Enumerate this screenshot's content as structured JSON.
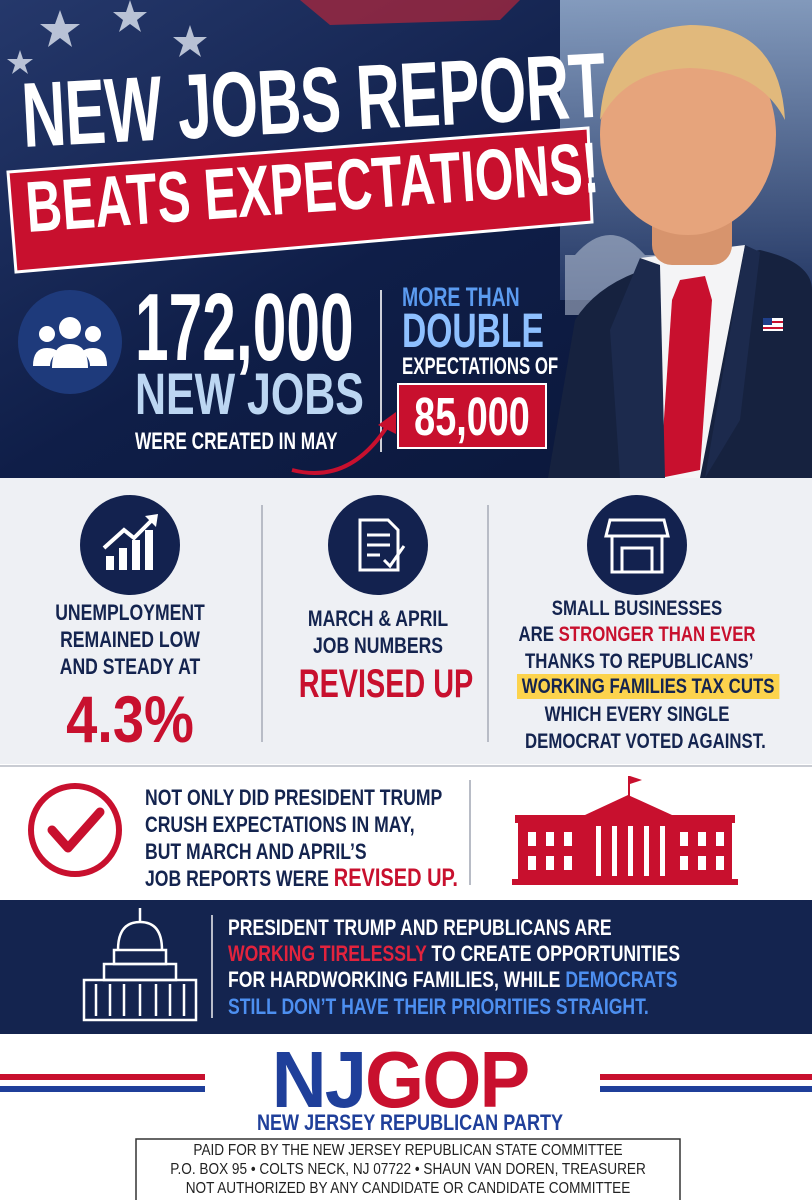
{
  "header": {
    "title": "NEW JOBS REPORT",
    "subtitle": "BEATS EXPECTATIONS!"
  },
  "jobs": {
    "number": "172,000",
    "label": "NEW JOBS",
    "caption": "WERE CREATED IN MAY"
  },
  "expectations": {
    "intro": "MORE THAN",
    "emphasis": "DOUBLE",
    "text": "EXPECTATIONS OF",
    "number": "85,000"
  },
  "unemployment": {
    "lines": [
      "UNEMPLOYMENT",
      "REMAINED LOW",
      "AND STEADY AT"
    ],
    "value": "4.3%"
  },
  "revisions": {
    "lines": [
      "MARCH & APRIL",
      "JOB NUMBERS"
    ],
    "value": "REVISED UP"
  },
  "small_business": {
    "line1": "SMALL BUSINESSES",
    "line2": "ARE",
    "line2_highlight": "STRONGER THAN EVER",
    "line3": "THANKS TO REPUBLICANS’",
    "line4_highlight": "WORKING FAMILIES TAX CUTS",
    "line5": "WHICH EVERY SINGLE",
    "line6": "DEMOCRAT VOTED AGAINST."
  },
  "revision_note": {
    "lines": [
      "NOT ONLY DID PRESIDENT TRUMP",
      "CRUSH EXPECTATIONS IN MAY,",
      "BUT MARCH AND APRIL’S",
      "JOB REPORTS WERE"
    ],
    "highlight": "REVISED UP."
  },
  "message": {
    "line1": "PRESIDENT TRUMP AND REPUBLICANS ARE",
    "line2_highlight": "WORKING TIRELESSLY",
    "line2": "TO CREATE OPPORTUNITIES",
    "line3": "FOR HARDWORKING FAMILIES, WHILE",
    "line3_highlight": "DEMOCRATS",
    "line4_highlight": "STILL DON’T HAVE THEIR PRIORITIES STRAIGHT."
  },
  "footer": {
    "logo_left": "NJ",
    "logo_right": "GOP",
    "party": "NEW JERSEY REPUBLICAN PARTY",
    "disclaimer": [
      "PAID FOR BY THE NEW JERSEY REPUBLICAN STATE COMMITTEE",
      "P.O. BOX 95  •  COLTS NECK, NJ 07722  •  SHAUN VAN DOREN, TREASURER",
      "NOT AUTHORIZED BY ANY CANDIDATE OR CANDIDATE COMMITTEE"
    ]
  }
}
